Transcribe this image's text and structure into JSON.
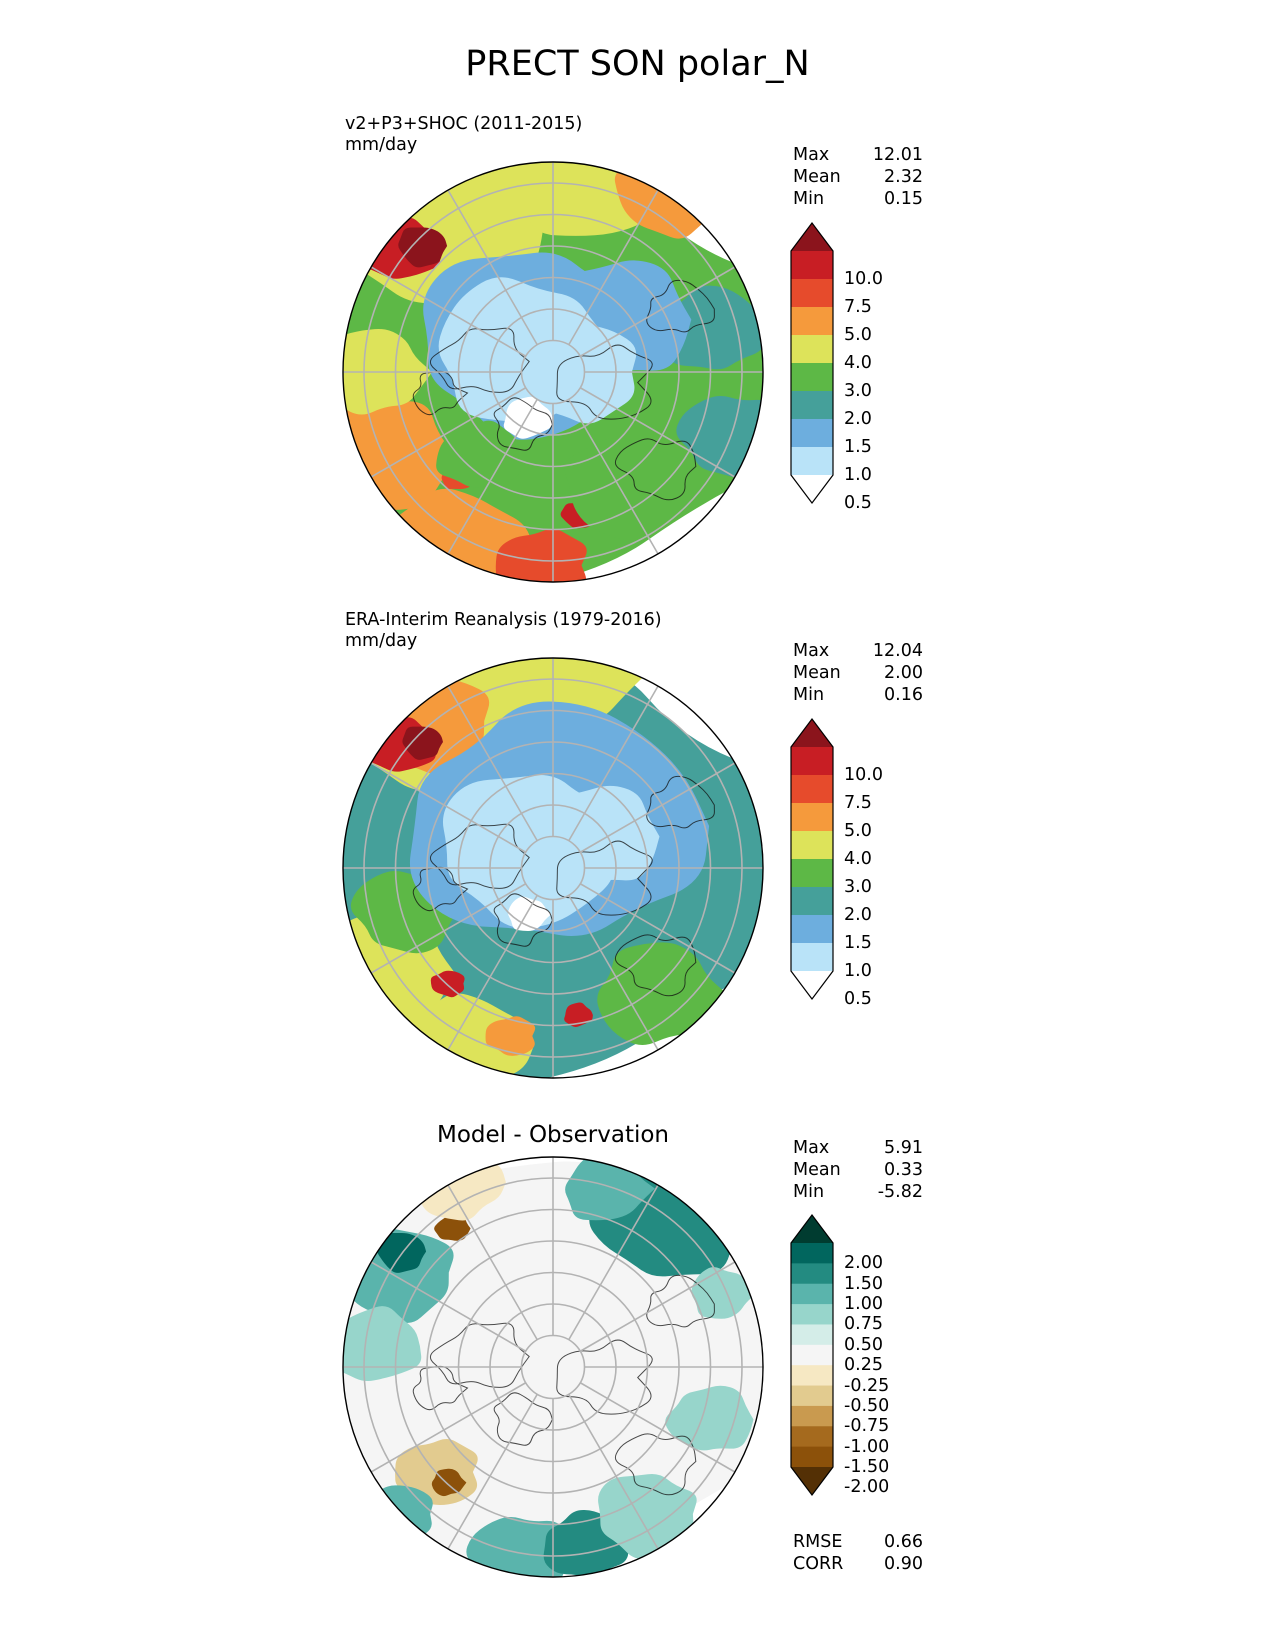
{
  "chart_data": {
    "type": "heatmap",
    "title": "PRECT SON polar_N",
    "projection": "north-polar-stereographic",
    "panels": [
      {
        "id": "test",
        "title_line1": "v2+P3+SHOC (2011-2015)",
        "title_line2": "mm/day",
        "stats": [
          {
            "label": "Max",
            "value": "12.01"
          },
          {
            "label": "Mean",
            "value": "2.32"
          },
          {
            "label": "Min",
            "value": "0.15"
          }
        ],
        "colorbar": {
          "extend": "both",
          "ticks": [
            "10.0",
            "7.5",
            "5.0",
            "4.0",
            "3.0",
            "2.0",
            "1.5",
            "1.0",
            "0.5"
          ],
          "colors": [
            "#8b141c",
            "#c81e24",
            "#e64b2c",
            "#f59a3c",
            "#dde35a",
            "#5db846",
            "#45a09a",
            "#6daede",
            "#b9e3f8",
            "#ffffff"
          ]
        }
      },
      {
        "id": "ref",
        "title_line1": "ERA-Interim Reanalysis (1979-2016)",
        "title_line2": "mm/day",
        "stats": [
          {
            "label": "Max",
            "value": "12.04"
          },
          {
            "label": "Mean",
            "value": "2.00"
          },
          {
            "label": "Min",
            "value": "0.16"
          }
        ],
        "colorbar": {
          "extend": "both",
          "ticks": [
            "10.0",
            "7.5",
            "5.0",
            "4.0",
            "3.0",
            "2.0",
            "1.5",
            "1.0",
            "0.5"
          ],
          "colors": [
            "#8b141c",
            "#c81e24",
            "#e64b2c",
            "#f59a3c",
            "#dde35a",
            "#5db846",
            "#45a09a",
            "#6daede",
            "#b9e3f8",
            "#ffffff"
          ]
        }
      },
      {
        "id": "diff",
        "title_center": "Model - Observation",
        "stats": [
          {
            "label": "Max",
            "value": "5.91"
          },
          {
            "label": "Mean",
            "value": "0.33"
          },
          {
            "label": "Min",
            "value": "-5.82"
          }
        ],
        "extra_stats": [
          {
            "label": "RMSE",
            "value": "0.66"
          },
          {
            "label": "CORR",
            "value": "0.90"
          }
        ],
        "colorbar": {
          "extend": "both",
          "ticks": [
            "2.00",
            "1.50",
            "1.00",
            "0.75",
            "0.50",
            "0.25",
            "-0.25",
            "-0.50",
            "-0.75",
            "-1.00",
            "-1.50",
            "-2.00"
          ],
          "colors": [
            "#003c30",
            "#01665e",
            "#238b81",
            "#5ab4ac",
            "#97d5cb",
            "#d4ede8",
            "#f5f5f5",
            "#f6e8c3",
            "#e2cb8f",
            "#c99a4f",
            "#a56a1e",
            "#8c510a",
            "#543005"
          ]
        }
      }
    ]
  }
}
